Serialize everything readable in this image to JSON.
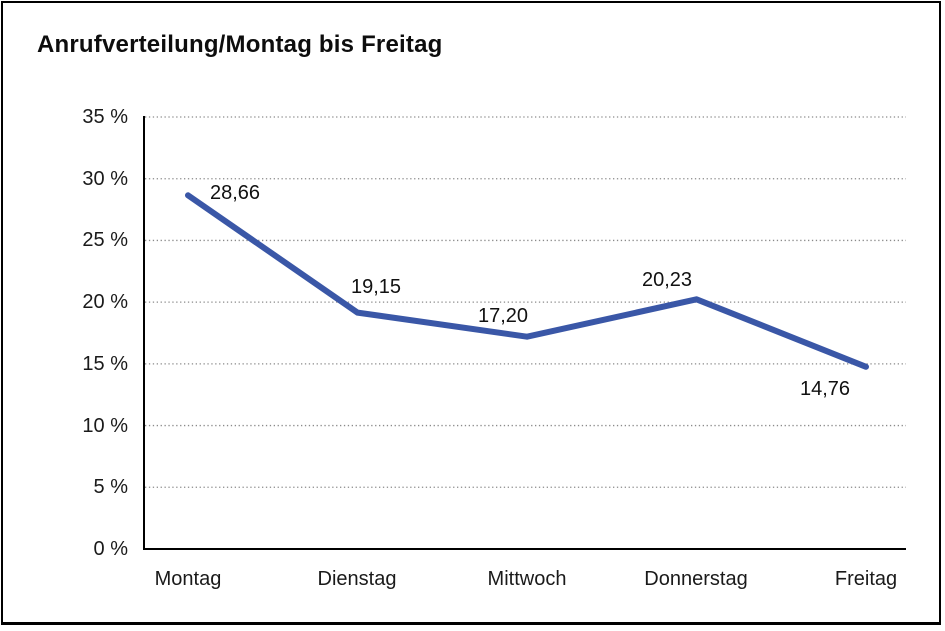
{
  "title": "Anrufverteilung/Montag bis Freitag",
  "colors": {
    "line": "#3A57A7",
    "grid": "#8a8a8a",
    "axis": "#000000",
    "text": "#1a1a1a",
    "background": "#ffffff",
    "frame": "#000000"
  },
  "chart_data": {
    "type": "line",
    "title": "Anrufverteilung/Montag bis Freitag",
    "categories": [
      "Montag",
      "Dienstag",
      "Mittwoch",
      "Donnerstag",
      "Freitag"
    ],
    "values": [
      28.66,
      19.15,
      17.2,
      20.23,
      14.76
    ],
    "point_labels": [
      "28,66",
      "19,15",
      "17,20",
      "20,23",
      "14,76"
    ],
    "series_name": "Anrufverteilung",
    "unit": "%",
    "xlabel": "",
    "ylabel": "",
    "ylim": [
      0,
      35
    ],
    "ytick_step": 5,
    "ytick_labels": [
      "0 %",
      "5 %",
      "10 %",
      "15 %",
      "20 %",
      "25 %",
      "30 %",
      "35 %"
    ],
    "grid": "horizontal-dotted",
    "legend": "none",
    "markers": "none"
  }
}
